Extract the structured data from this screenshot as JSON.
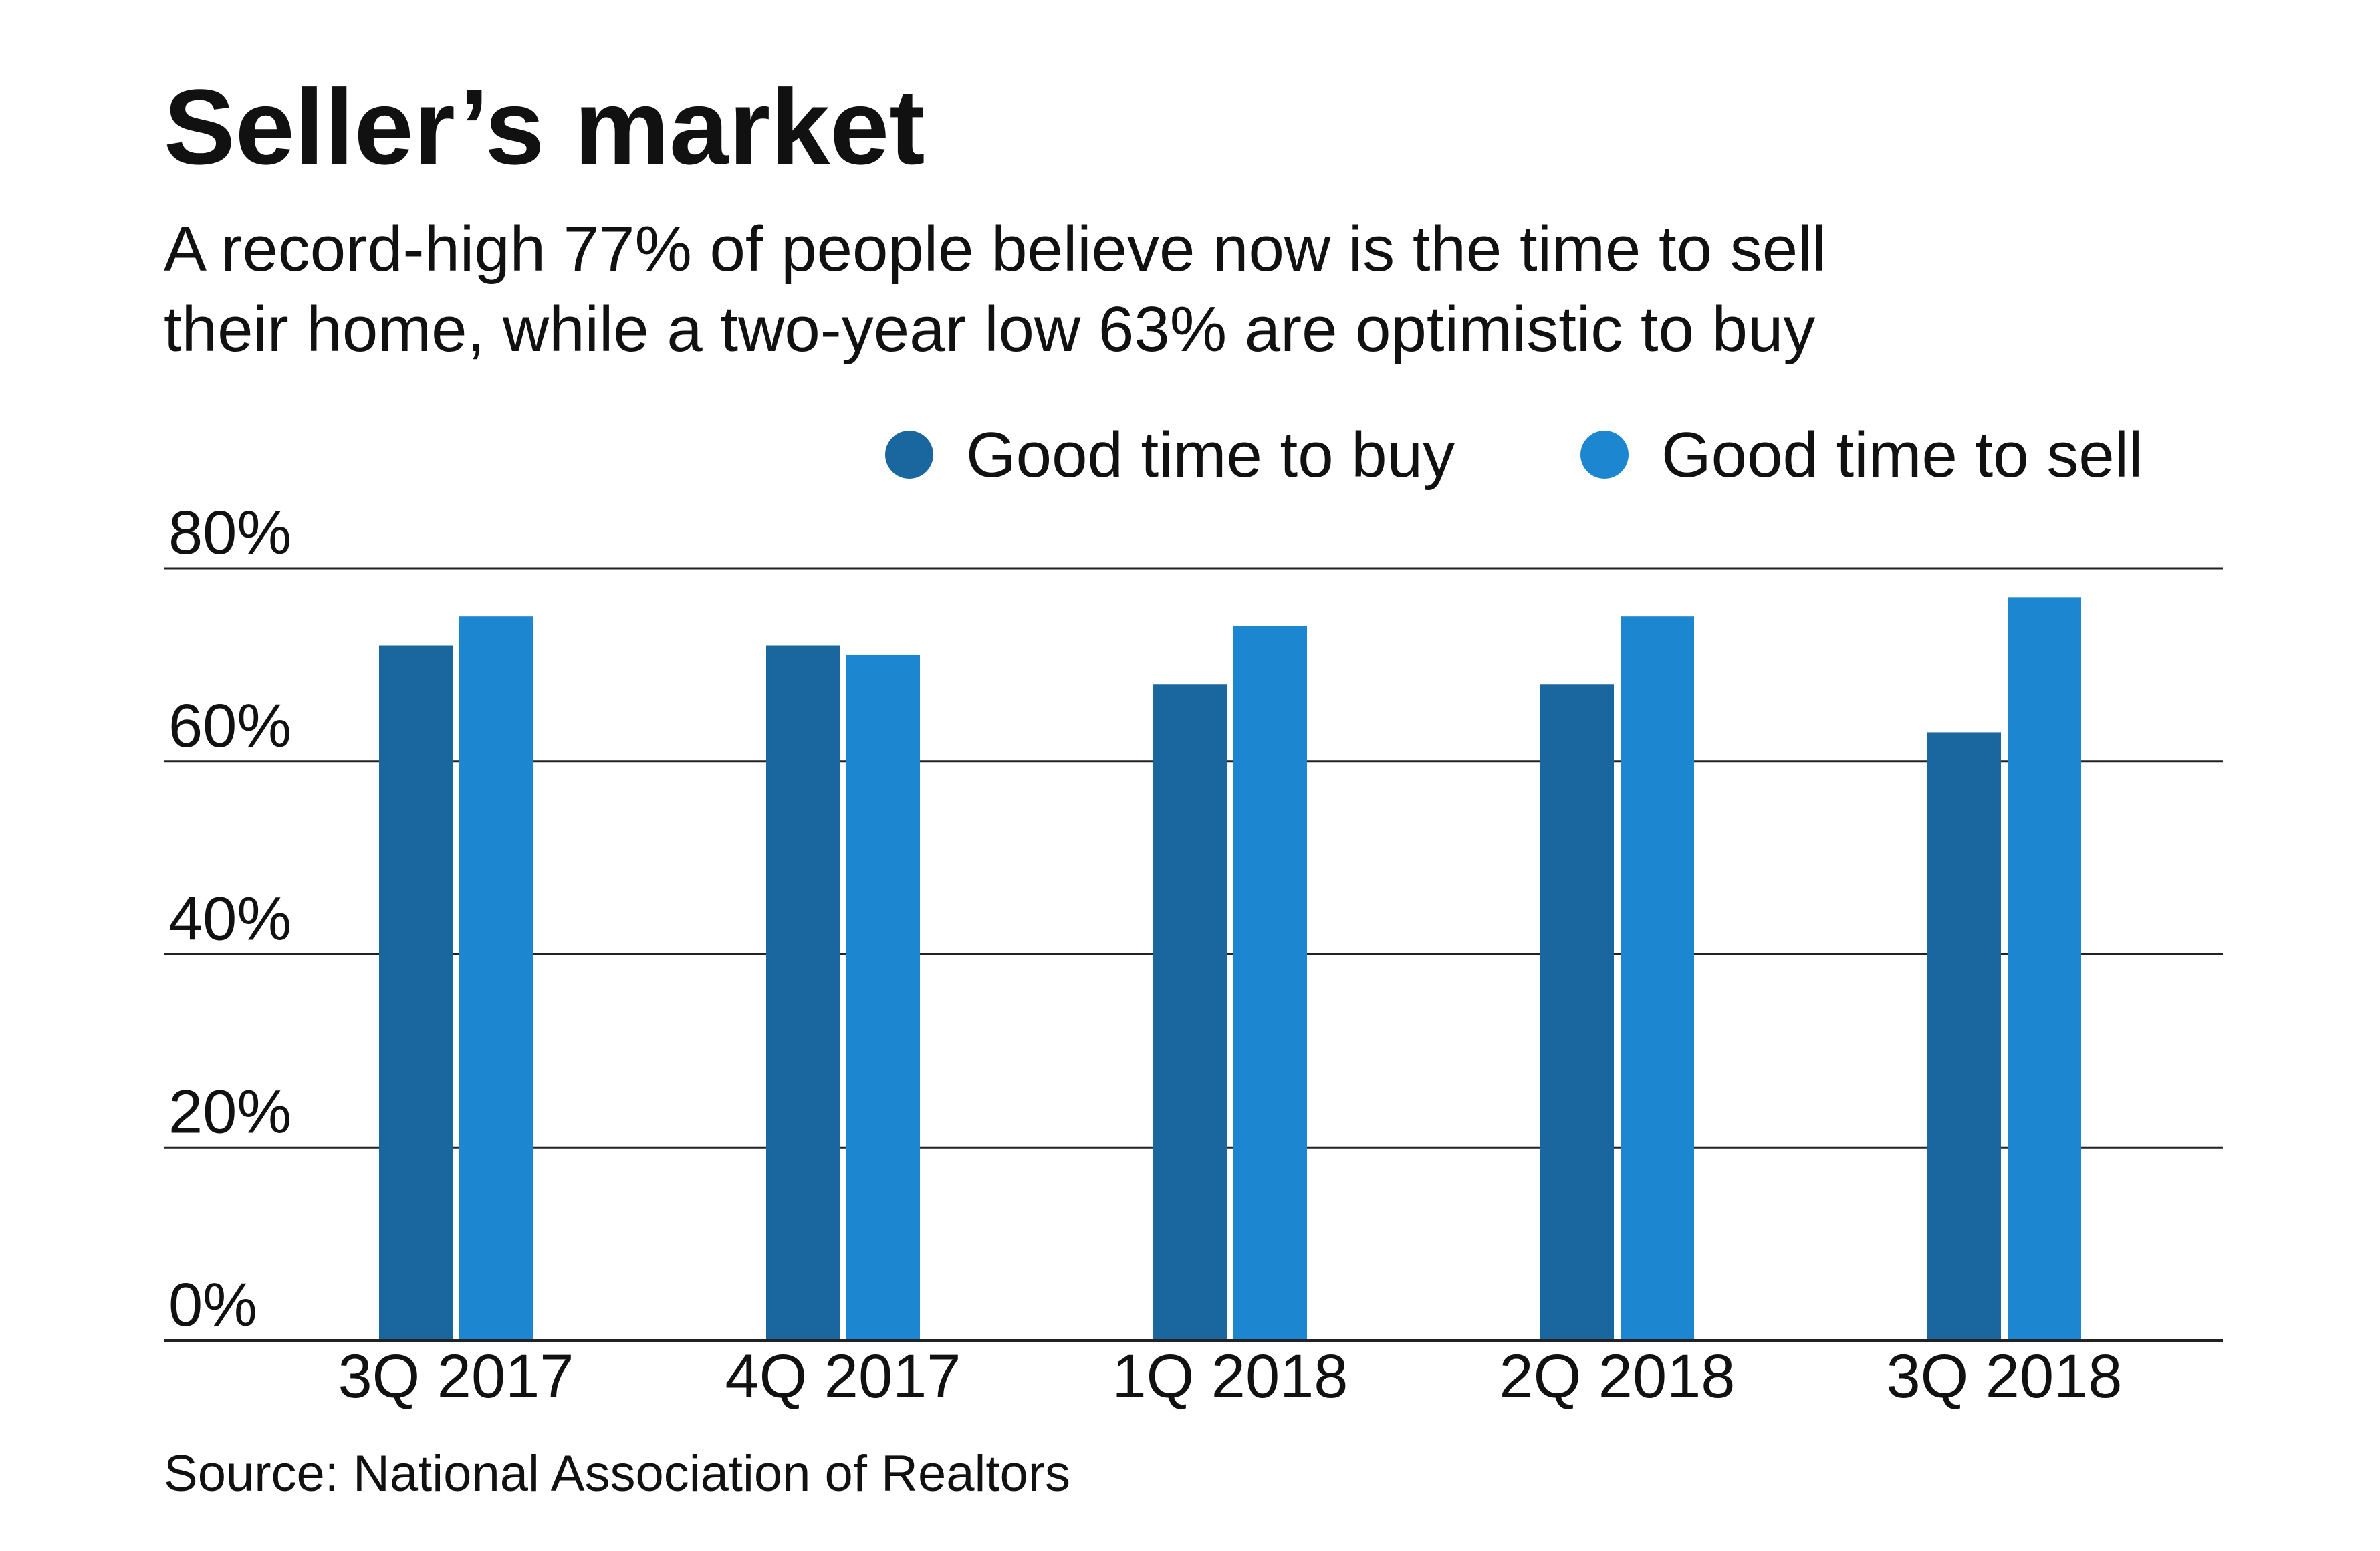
{
  "chart_data": {
    "type": "bar",
    "title": "Seller’s market",
    "subtitle_lines": [
      "A record-high 77% of people believe now is the time to sell",
      "their home, while a two-year low 63% are optimistic to buy"
    ],
    "categories": [
      "3Q 2017",
      "4Q 2017",
      "1Q 2018",
      "2Q 2018",
      "3Q 2018"
    ],
    "series": [
      {
        "name": "Good time to buy",
        "color": "#1a67a0",
        "values": [
          72,
          72,
          68,
          68,
          63
        ]
      },
      {
        "name": "Good time to sell",
        "color": "#1d86d1",
        "values": [
          75,
          71,
          74,
          75,
          77
        ]
      }
    ],
    "ylim": [
      0,
      80
    ],
    "yticks": [
      0,
      20,
      40,
      60,
      80
    ],
    "ytick_labels": [
      "0%",
      "20%",
      "40%",
      "60%",
      "80%"
    ],
    "grid": true,
    "legend_position": "top-right",
    "source": "Source: National Association of Realtors"
  }
}
